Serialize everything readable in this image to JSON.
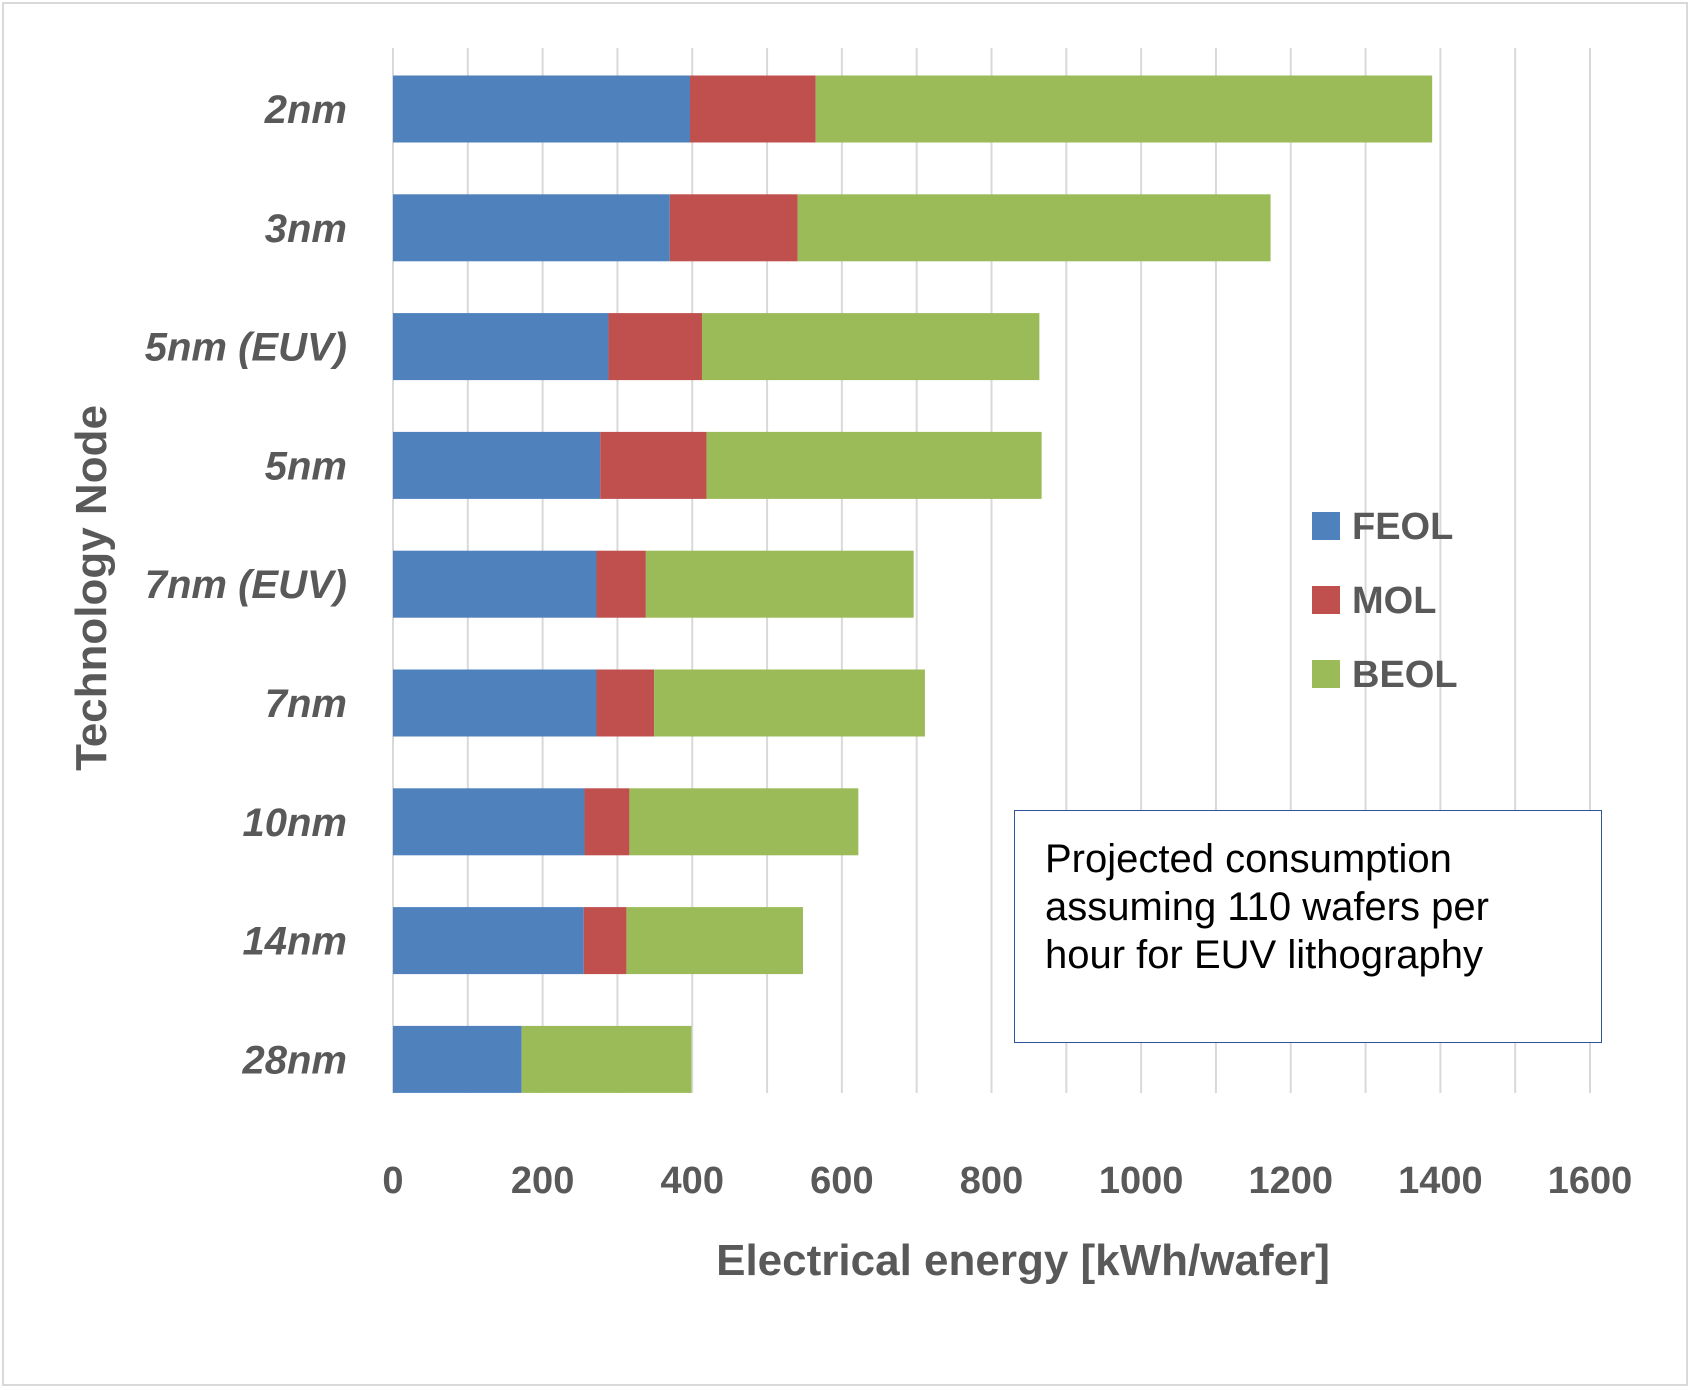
{
  "chart_data": {
    "type": "bar",
    "orientation": "horizontal",
    "stacked": true,
    "categories": [
      "2nm",
      "3nm",
      "5nm (EUV)",
      "5nm",
      "7nm (EUV)",
      "7nm",
      "10nm",
      "14nm",
      "28nm"
    ],
    "series": [
      {
        "name": "FEOL",
        "color": "#4f81bd",
        "values": [
          397,
          370,
          288,
          277,
          272,
          272,
          256,
          255,
          172
        ]
      },
      {
        "name": "MOL",
        "color": "#c0504d",
        "values": [
          168,
          171,
          125,
          142,
          66,
          77,
          60,
          57,
          0
        ]
      },
      {
        "name": "BEOL",
        "color": "#9bbb59",
        "values": [
          824,
          632,
          451,
          448,
          358,
          362,
          306,
          236,
          227
        ]
      }
    ],
    "xlabel": "Electrical energy [kWh/wafer]",
    "ylabel": "Technology Node",
    "xlim": [
      0,
      1600
    ],
    "xticks": [
      0,
      200,
      400,
      600,
      800,
      1000,
      1200,
      1400,
      1600
    ],
    "grid": true,
    "legend_position": "right"
  },
  "annotation": "Projected consumption assuming 110 wafers per hour for EUV lithography"
}
